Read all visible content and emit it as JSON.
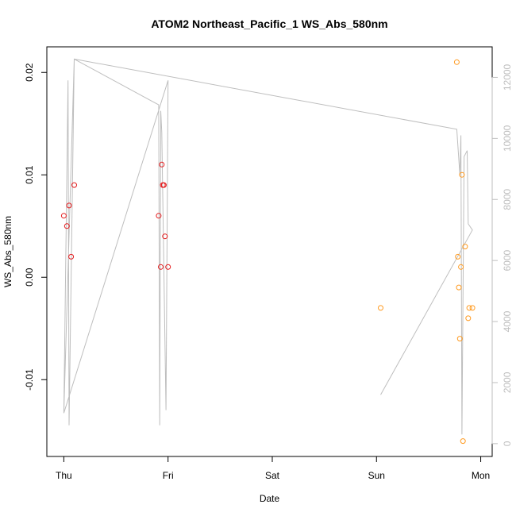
{
  "chart_data": {
    "type": "scatter",
    "title": "ATOM2 Northeast_Pacific_1 WS_Abs_580nm",
    "xlabel": "Date",
    "ylabel": "WS_Abs_580nm",
    "x_ticks": [
      "Thu",
      "Fri",
      "Sat",
      "Sun",
      "Mon"
    ],
    "x_tick_values": [
      0,
      1,
      2,
      3,
      4
    ],
    "xlim": [
      -0.163,
      4.11
    ],
    "ylim": [
      -0.0175,
      0.0225
    ],
    "y_ticks": [
      "-0.01",
      "0.00",
      "0.01",
      "0.02"
    ],
    "y_tick_values": [
      -0.01,
      0.0,
      0.01,
      0.02
    ],
    "y2_ticks": [
      "0",
      "2000",
      "4000",
      "6000",
      "8000",
      "10000",
      "12000"
    ],
    "y2_tick_values": [
      0,
      2000,
      4000,
      6000,
      8000,
      10000,
      12000
    ],
    "y2lim": [
      -420,
      13000
    ],
    "colors": {
      "series1": "#e41a1c",
      "series2": "#ff9a1f",
      "track": "#bebebe",
      "axis": "#000000",
      "axis2": "#bebebe"
    },
    "series": [
      {
        "color": "#e41a1c",
        "points": [
          [
            0.0,
            0.006
          ],
          [
            0.03,
            0.005
          ],
          [
            0.05,
            0.007
          ],
          [
            0.07,
            0.002
          ],
          [
            0.1,
            0.009
          ],
          [
            0.91,
            0.006
          ],
          [
            0.93,
            0.001
          ],
          [
            0.94,
            0.011
          ],
          [
            0.95,
            0.009
          ],
          [
            0.96,
            0.009
          ],
          [
            0.97,
            0.004
          ],
          [
            1.0,
            0.001
          ]
        ]
      },
      {
        "color": "#ff9a1f",
        "points": [
          [
            3.04,
            -0.003
          ],
          [
            3.77,
            0.021
          ],
          [
            3.78,
            0.002
          ],
          [
            3.79,
            -0.001
          ],
          [
            3.8,
            -0.006
          ],
          [
            3.81,
            0.001
          ],
          [
            3.82,
            0.01
          ],
          [
            3.83,
            -0.016
          ],
          [
            3.85,
            0.003
          ],
          [
            3.88,
            -0.004
          ],
          [
            3.89,
            -0.003
          ],
          [
            3.92,
            -0.003
          ]
        ]
      }
    ],
    "secondary_line": [
      [
        0.0,
        1000
      ],
      [
        0.04,
        11900
      ],
      [
        0.05,
        600
      ],
      [
        0.1,
        12600
      ],
      [
        0.91,
        11100
      ],
      [
        0.92,
        600
      ],
      [
        0.93,
        10900
      ],
      [
        0.94,
        10200
      ],
      [
        0.98,
        1100
      ],
      [
        1.0,
        11900
      ],
      [
        0.0,
        1000
      ],
      [
        0.1,
        12600
      ],
      [
        3.77,
        10300
      ],
      [
        3.8,
        8800
      ],
      [
        3.81,
        10100
      ],
      [
        3.82,
        300
      ],
      [
        3.84,
        9400
      ],
      [
        3.87,
        9600
      ],
      [
        3.88,
        7200
      ],
      [
        3.92,
        7000
      ],
      [
        3.04,
        1600
      ]
    ]
  }
}
